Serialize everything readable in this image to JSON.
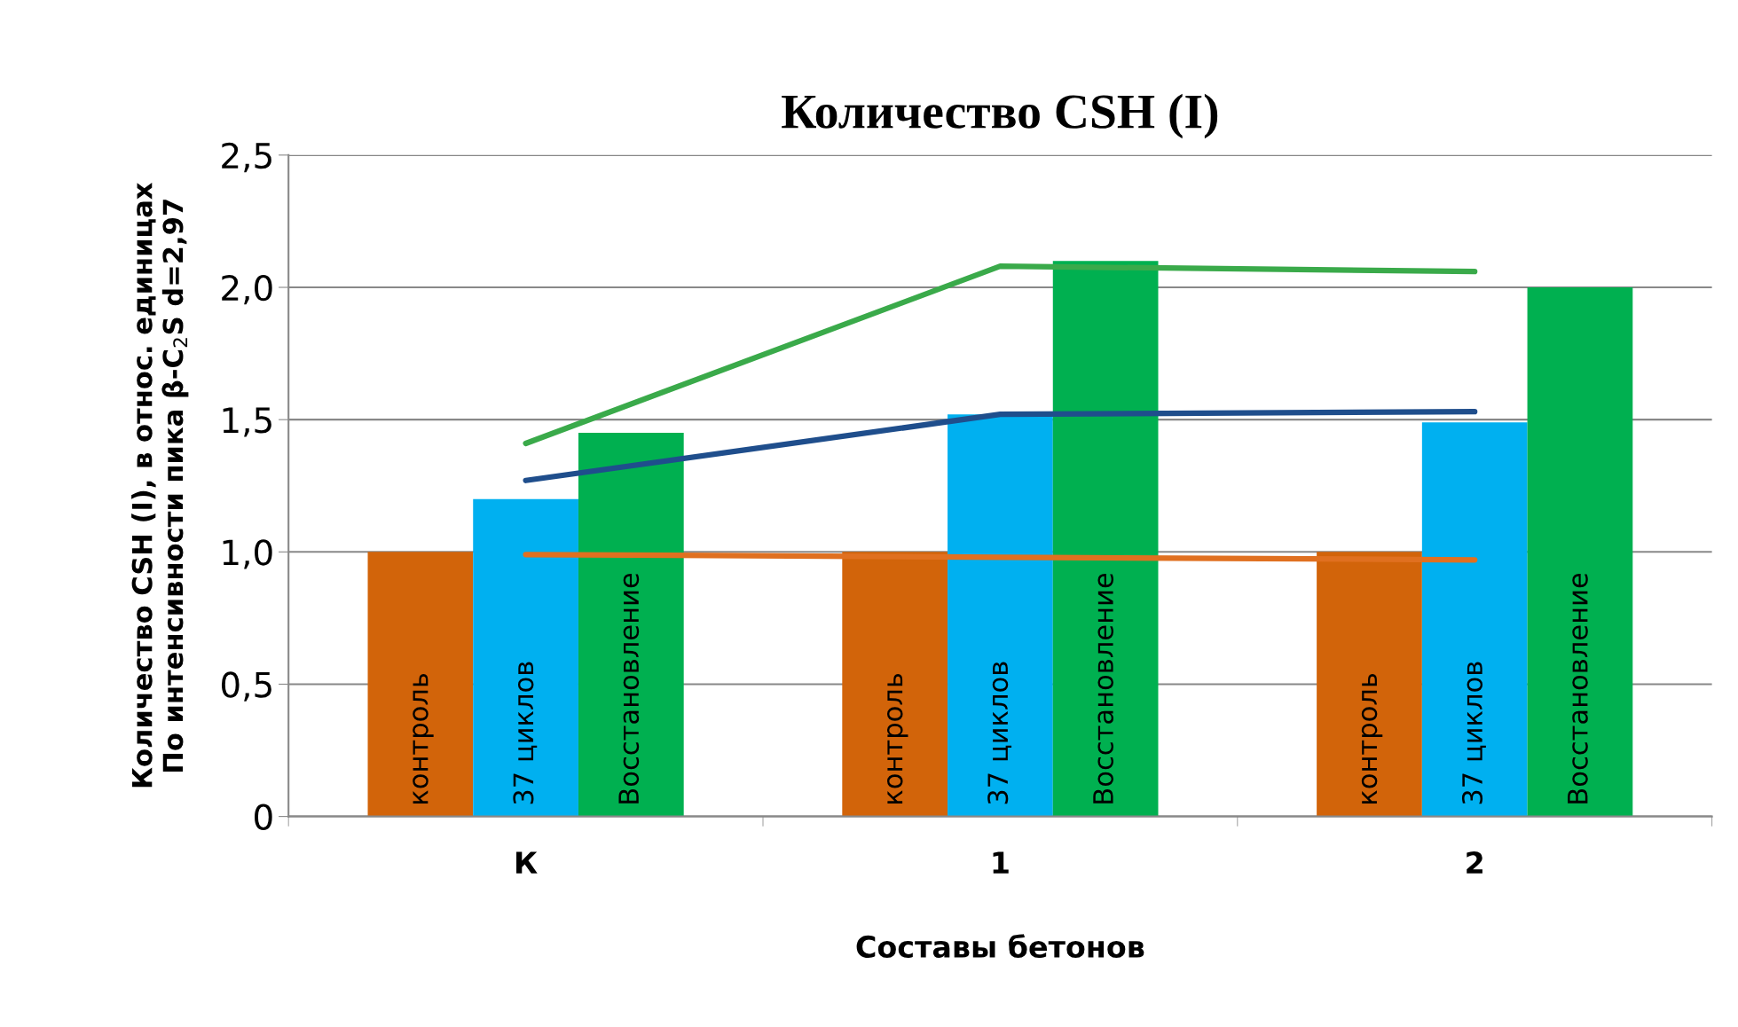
{
  "chart_data": {
    "type": "bar",
    "title": "Количество CSH (I)",
    "xlabel": "Составы бетонов",
    "ylabel": "Количество CSH (I), в относ. единицах\nПо интенсивности пика β-C$_{2}$S d=2,97",
    "categories": [
      "К",
      "1",
      "2"
    ],
    "series": [
      {
        "name": "контроль",
        "color": "#d2640a",
        "values": [
          1.0,
          1.0,
          1.0
        ]
      },
      {
        "name": "37 циклов",
        "color": "#00b0f0",
        "values": [
          1.2,
          1.52,
          1.49
        ]
      },
      {
        "name": "Восстановление",
        "color": "#00b050",
        "values": [
          1.45,
          2.1,
          2.0
        ]
      },
      {
        "type": "line",
        "color": "#e07020",
        "values": [
          0.99,
          0.98,
          0.97
        ]
      },
      {
        "type": "line",
        "color": "#1f4e8c",
        "values": [
          1.27,
          1.52,
          1.53
        ]
      },
      {
        "type": "line",
        "color": "#3aaa4a",
        "values": [
          1.41,
          2.08,
          2.06
        ]
      }
    ],
    "ylim": [
      0,
      2.5
    ],
    "yticks": [
      0,
      {
        "value": 0.5,
        "label": "0,5"
      },
      {
        "value": 1.0,
        "label": "1,0"
      },
      {
        "value": 1.5,
        "label": "1,5"
      },
      {
        "value": 2.0,
        "label": "2,0"
      },
      {
        "value": 2.5,
        "label": "2,5"
      }
    ],
    "grid": "y",
    "legend": false
  }
}
